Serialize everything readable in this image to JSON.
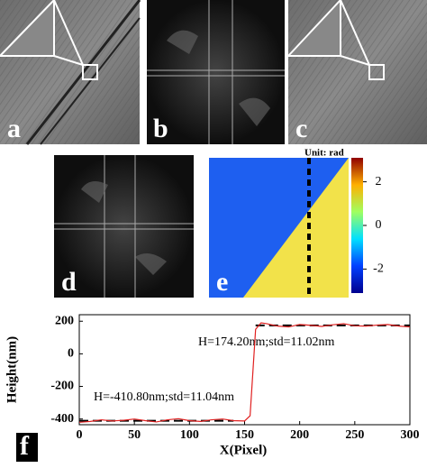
{
  "panel_labels": [
    "a",
    "b",
    "c",
    "d",
    "e",
    "f"
  ],
  "colorbar": {
    "label": "Unit: rad",
    "lim": [
      -3.1,
      3.1
    ],
    "ticks": [
      2,
      0,
      -2
    ]
  },
  "chart_data": {
    "type": "line",
    "ylabel": "Height(nm)",
    "xlabel": "X(Pixel)",
    "xlim": [
      0,
      300
    ],
    "xticks": [
      0,
      50,
      100,
      150,
      200,
      250,
      300
    ],
    "ylim": [
      -435,
      240
    ],
    "yticks": [
      -400,
      -200,
      0,
      200
    ],
    "x": [
      0,
      10,
      20,
      30,
      40,
      50,
      60,
      70,
      80,
      90,
      100,
      110,
      120,
      130,
      140,
      150,
      155,
      160,
      165,
      170,
      180,
      190,
      200,
      210,
      220,
      230,
      240,
      250,
      260,
      270,
      280,
      290,
      300
    ],
    "series": [
      {
        "color": "#e02020",
        "values": [
          -420,
          -415,
          -405,
          -412,
          -408,
          -400,
          -410,
          -418,
          -405,
          -398,
          -410,
          -415,
          -405,
          -400,
          -410,
          -412,
          -380,
          150,
          190,
          185,
          170,
          165,
          180,
          175,
          168,
          178,
          185,
          172,
          170,
          176,
          180,
          170,
          165
        ]
      }
    ],
    "reference_lines": [
      {
        "y": -410.8,
        "x": [
          0,
          140
        ],
        "color": "#000000"
      },
      {
        "y": 174.2,
        "x": [
          160,
          300
        ],
        "color": "#000000"
      }
    ],
    "annotations": [
      "H=174.20nm;std=11.02nm",
      "H=-410.80nm;std=11.04nm"
    ]
  }
}
